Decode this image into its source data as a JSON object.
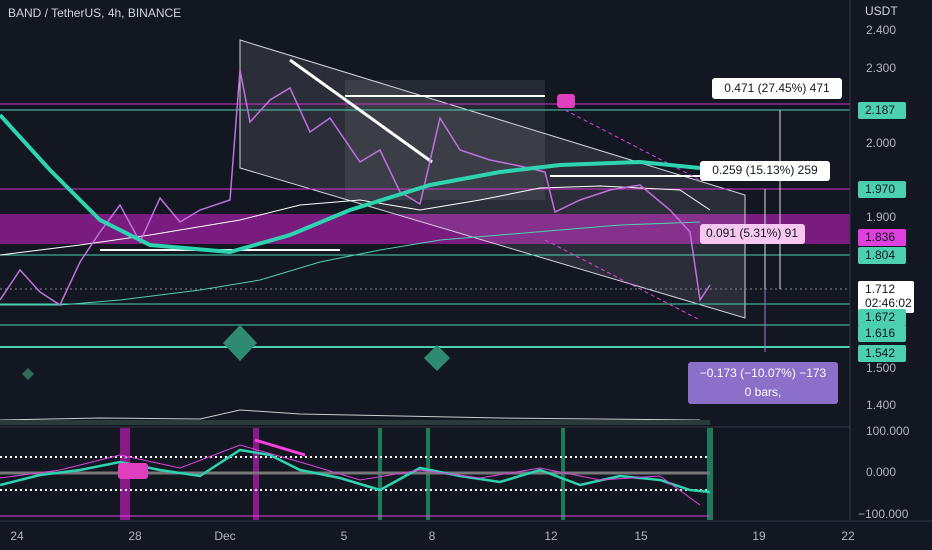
{
  "header": {
    "symbol": "BAND / TetherUS, 4h, BINANCE",
    "currency": "USDT"
  },
  "price_axis": [
    "2.400",
    "2.300",
    "2.000",
    "1.900",
    "1.500",
    "1.400"
  ],
  "oscillator_axis": [
    "100.000",
    "0.000",
    "−100.000"
  ],
  "time_axis": [
    "24",
    "28",
    "Dec",
    "5",
    "8",
    "12",
    "15",
    "19",
    "22"
  ],
  "price_tags": {
    "level_1": "2.187",
    "level_2": "1.970",
    "level_3": "1.836",
    "level_4": "1.804",
    "last_price": "1.712",
    "countdown": "02:46:02",
    "level_5": "1.672",
    "level_6": "1.616",
    "level_7": "1.542"
  },
  "measurements": {
    "up_large": "0.471 (27.45%) 471",
    "up_medium": "0.259 (15.13%) 259",
    "up_small": "0.091 (5.31%) 91",
    "down": "−0.173 (−10.07%) −173",
    "down_bars": "0 bars,"
  }
}
